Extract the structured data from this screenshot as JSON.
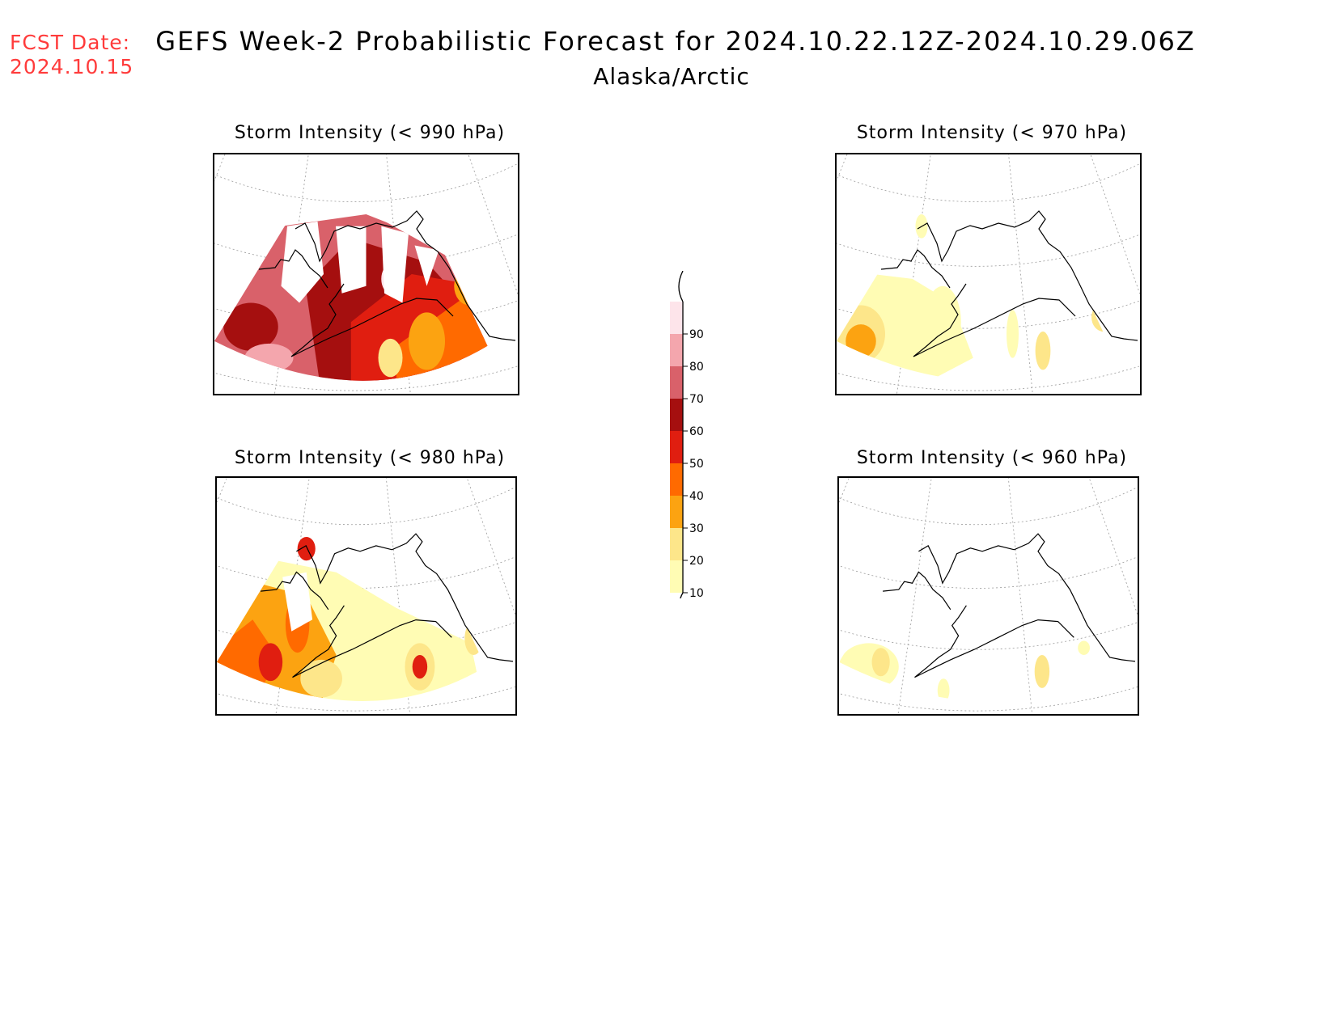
{
  "header": {
    "fcst_label_line1": "FCST Date:",
    "fcst_label_line2": "2024.10.15",
    "title": "GEFS Week-2 Probabilistic Forecast for 2024.10.22.12Z-2024.10.29.06Z",
    "region": "Alaska/Arctic"
  },
  "colors": {
    "fcst_label": "#ff3b3b",
    "scale": [
      "#fffcb4",
      "#fde68a",
      "#fca311",
      "#ff6a00",
      "#e01e10",
      "#a50f0f",
      "#d9616a",
      "#f4a6ad",
      "#fde4ea"
    ]
  },
  "panels": [
    {
      "id": "p990",
      "title": "Storm Intensity (< 990 hPa)"
    },
    {
      "id": "p970",
      "title": "Storm Intensity (< 970 hPa)"
    },
    {
      "id": "p980",
      "title": "Storm Intensity (< 980 hPa)"
    },
    {
      "id": "p960",
      "title": "Storm Intensity (< 960 hPa)"
    }
  ],
  "legend": {
    "levels": [
      "10",
      "20",
      "30",
      "40",
      "50",
      "60",
      "70",
      "80",
      "90"
    ]
  }
}
